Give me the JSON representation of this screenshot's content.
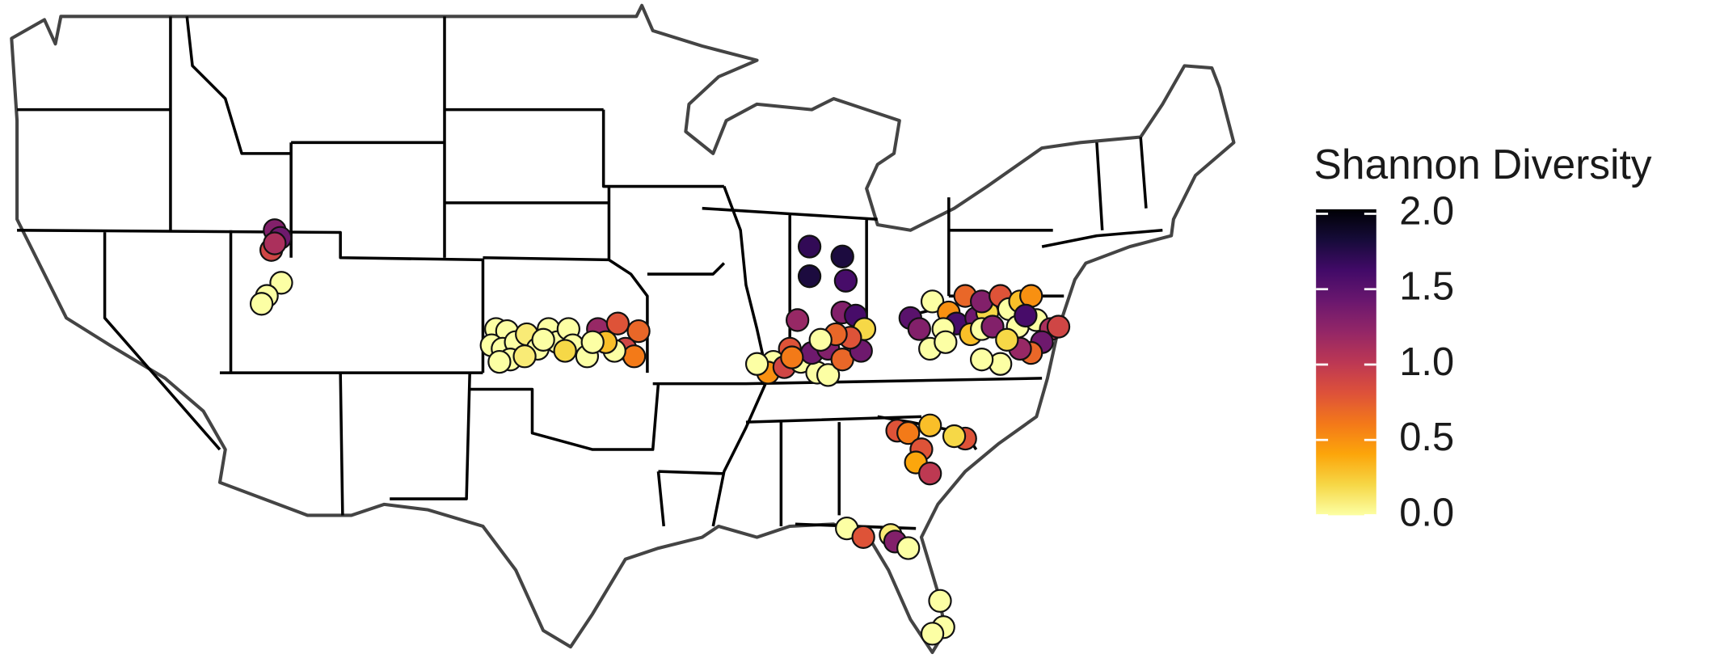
{
  "map": {
    "legend": {
      "title": "Shannon Diversity",
      "colormap": "inferno",
      "reverse": true,
      "limits": [
        0,
        2.03
      ],
      "ticks": [
        {
          "value": 2,
          "label": "2.0"
        },
        {
          "value": 1.5,
          "label": "1.5"
        },
        {
          "value": 1,
          "label": "1.0"
        },
        {
          "value": 0.5,
          "label": "0.5"
        },
        {
          "value": 0,
          "label": "0.0"
        }
      ]
    },
    "points": [
      {
        "lon": -112.28,
        "lat": 40.86,
        "value": 1.3
      },
      {
        "lon": -112.02,
        "lat": 40.57,
        "value": 1.4
      },
      {
        "lon": -112.44,
        "lat": 40.11,
        "value": 0.9
      },
      {
        "lon": -112.28,
        "lat": 40.36,
        "value": 1.1
      },
      {
        "lon": -111.97,
        "lat": 38.86,
        "value": 0
      },
      {
        "lon": -112.65,
        "lat": 38.36,
        "value": 0
      },
      {
        "lon": -112.9,
        "lat": 38.06,
        "value": 0
      },
      {
        "lon": -101.83,
        "lat": 37.1,
        "value": 0
      },
      {
        "lon": -101.31,
        "lat": 37.02,
        "value": 0
      },
      {
        "lon": -102.04,
        "lat": 36.48,
        "value": 0
      },
      {
        "lon": -101.52,
        "lat": 36.35,
        "value": 0
      },
      {
        "lon": -100.9,
        "lat": 36.6,
        "value": 0
      },
      {
        "lon": -101.16,
        "lat": 35.94,
        "value": 0
      },
      {
        "lon": -100.38,
        "lat": 36.9,
        "value": 0.1
      },
      {
        "lon": -99.86,
        "lat": 36.35,
        "value": 0
      },
      {
        "lon": -99.35,
        "lat": 37.1,
        "value": 0
      },
      {
        "lon": -98.93,
        "lat": 36.6,
        "value": 0
      },
      {
        "lon": -98.41,
        "lat": 37.1,
        "value": 0
      },
      {
        "lon": -98.21,
        "lat": 36.48,
        "value": 0
      },
      {
        "lon": -97.53,
        "lat": 36.06,
        "value": 0
      },
      {
        "lon": -98.57,
        "lat": 36.27,
        "value": 0.2
      },
      {
        "lon": -100.48,
        "lat": 36.06,
        "value": 0.1
      },
      {
        "lon": -97.02,
        "lat": 37.1,
        "value": 1.2
      },
      {
        "lon": -96.08,
        "lat": 37.31,
        "value": 0.8
      },
      {
        "lon": -95.1,
        "lat": 37.02,
        "value": 0.7
      },
      {
        "lon": -95.72,
        "lat": 36.35,
        "value": 0.9
      },
      {
        "lon": -95.31,
        "lat": 36.06,
        "value": 0.6
      },
      {
        "lon": -96.24,
        "lat": 36.27,
        "value": 0
      },
      {
        "lon": -96.65,
        "lat": 36.6,
        "value": 0.3
      },
      {
        "lon": -97.27,
        "lat": 36.6,
        "value": 0
      },
      {
        "lon": -99.6,
        "lat": 36.69,
        "value": 0
      },
      {
        "lon": -101.67,
        "lat": 35.85,
        "value": 0
      },
      {
        "lon": -87.03,
        "lat": 40.24,
        "value": 1.7
      },
      {
        "lon": -85.48,
        "lat": 39.86,
        "value": 1.8
      },
      {
        "lon": -87.03,
        "lat": 39.11,
        "value": 1.8
      },
      {
        "lon": -85.32,
        "lat": 38.94,
        "value": 1.6
      },
      {
        "lon": -85.48,
        "lat": 37.73,
        "value": 1.3
      },
      {
        "lon": -87.6,
        "lat": 37.44,
        "value": 1.2
      },
      {
        "lon": -84.85,
        "lat": 37.61,
        "value": 1.6
      },
      {
        "lon": -84.44,
        "lat": 37.1,
        "value": 0.2
      },
      {
        "lon": -87.96,
        "lat": 36.35,
        "value": 0.8
      },
      {
        "lon": -88.74,
        "lat": 35.85,
        "value": 0
      },
      {
        "lon": -88.99,
        "lat": 35.44,
        "value": 0.5
      },
      {
        "lon": -88.22,
        "lat": 35.65,
        "value": 0.9
      },
      {
        "lon": -87.44,
        "lat": 35.85,
        "value": 0
      },
      {
        "lon": -86.67,
        "lat": 35.44,
        "value": 0
      },
      {
        "lon": -86.15,
        "lat": 35.35,
        "value": 0
      },
      {
        "lon": -86.92,
        "lat": 36.19,
        "value": 1.4
      },
      {
        "lon": -86.15,
        "lat": 36.35,
        "value": 1.3
      },
      {
        "lon": -85.48,
        "lat": 35.94,
        "value": 0.7
      },
      {
        "lon": -84.6,
        "lat": 36.27,
        "value": 1.4
      },
      {
        "lon": -85.11,
        "lat": 36.77,
        "value": 0.8
      },
      {
        "lon": -85.79,
        "lat": 36.9,
        "value": 0.7
      },
      {
        "lon": -86.51,
        "lat": 36.69,
        "value": 0
      },
      {
        "lon": -87.86,
        "lat": 36.02,
        "value": 0.6
      },
      {
        "lon": -89.51,
        "lat": 35.77,
        "value": 0
      },
      {
        "lon": -82.27,
        "lat": 37.52,
        "value": 1.5
      },
      {
        "lon": -81.85,
        "lat": 37.1,
        "value": 1.3
      },
      {
        "lon": -81.23,
        "lat": 38.15,
        "value": 0
      },
      {
        "lon": -80.46,
        "lat": 37.73,
        "value": 0.5
      },
      {
        "lon": -79.68,
        "lat": 38.36,
        "value": 0.7
      },
      {
        "lon": -80.09,
        "lat": 37.31,
        "value": 1.6
      },
      {
        "lon": -80.71,
        "lat": 37.1,
        "value": 0
      },
      {
        "lon": -81.34,
        "lat": 36.35,
        "value": 0
      },
      {
        "lon": -80.61,
        "lat": 36.6,
        "value": 0
      },
      {
        "lon": -79.16,
        "lat": 37.52,
        "value": 1.4
      },
      {
        "lon": -78.64,
        "lat": 37.73,
        "value": 0.2
      },
      {
        "lon": -79.42,
        "lat": 36.9,
        "value": 0.3
      },
      {
        "lon": -78.9,
        "lat": 37.1,
        "value": 0
      },
      {
        "lon": -78.9,
        "lat": 38.15,
        "value": 1.3
      },
      {
        "lon": -78.02,
        "lat": 38.36,
        "value": 0.8
      },
      {
        "lon": -77.61,
        "lat": 37.86,
        "value": 0
      },
      {
        "lon": -77.09,
        "lat": 38.15,
        "value": 0.3
      },
      {
        "lon": -76.57,
        "lat": 38.36,
        "value": 0.5
      },
      {
        "lon": -77.2,
        "lat": 37.19,
        "value": 0
      },
      {
        "lon": -76.32,
        "lat": 37.44,
        "value": 0
      },
      {
        "lon": -75.64,
        "lat": 37.1,
        "value": 1.1
      },
      {
        "lon": -75.28,
        "lat": 37.19,
        "value": 0.9
      },
      {
        "lon": -76.06,
        "lat": 36.6,
        "value": 1.4
      },
      {
        "lon": -76.57,
        "lat": 36.19,
        "value": 0.7
      },
      {
        "lon": -77.09,
        "lat": 36.35,
        "value": 1.2
      },
      {
        "lon": -78.02,
        "lat": 35.77,
        "value": 0
      },
      {
        "lon": -78.9,
        "lat": 35.94,
        "value": 0
      },
      {
        "lon": -76.83,
        "lat": 37.61,
        "value": 1.6
      },
      {
        "lon": -78.39,
        "lat": 37.19,
        "value": 1.3
      },
      {
        "lon": -77.71,
        "lat": 36.69,
        "value": 0.2
      },
      {
        "lon": -82.89,
        "lat": 33.23,
        "value": 0.8
      },
      {
        "lon": -81.34,
        "lat": 33.43,
        "value": 0.3
      },
      {
        "lon": -82.37,
        "lat": 33.14,
        "value": 0.6
      },
      {
        "lon": -81.75,
        "lat": 32.52,
        "value": 0.8
      },
      {
        "lon": -82.01,
        "lat": 32.02,
        "value": 0.4
      },
      {
        "lon": -81.34,
        "lat": 31.6,
        "value": 1
      },
      {
        "lon": -79.68,
        "lat": 32.93,
        "value": 0.8
      },
      {
        "lon": -80.2,
        "lat": 33.02,
        "value": 0.2
      },
      {
        "lon": -85.27,
        "lat": 29.51,
        "value": 0
      },
      {
        "lon": -84.49,
        "lat": 29.18,
        "value": 0.8
      },
      {
        "lon": -83.2,
        "lat": 29.26,
        "value": 0.1
      },
      {
        "lon": -82.99,
        "lat": 29.01,
        "value": 1.3
      },
      {
        "lon": -82.37,
        "lat": 28.76,
        "value": 0
      },
      {
        "lon": -80.87,
        "lat": 26.75,
        "value": 0
      },
      {
        "lon": -80.71,
        "lat": 25.75,
        "value": 0
      },
      {
        "lon": -81.23,
        "lat": 25.5,
        "value": 0
      }
    ]
  }
}
